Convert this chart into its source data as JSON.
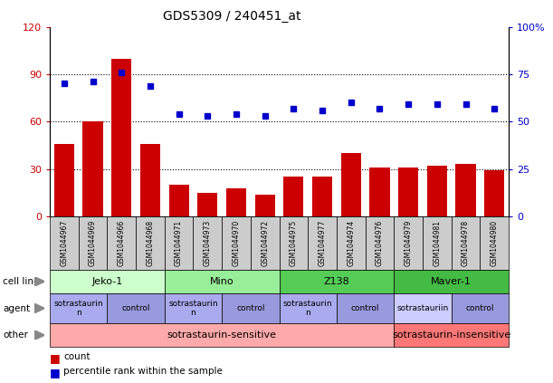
{
  "title": "GDS5309 / 240451_at",
  "samples": [
    "GSM1044967",
    "GSM1044969",
    "GSM1044966",
    "GSM1044968",
    "GSM1044971",
    "GSM1044973",
    "GSM1044970",
    "GSM1044972",
    "GSM1044975",
    "GSM1044977",
    "GSM1044974",
    "GSM1044976",
    "GSM1044979",
    "GSM1044981",
    "GSM1044978",
    "GSM1044980"
  ],
  "counts": [
    46,
    60,
    100,
    46,
    20,
    15,
    18,
    14,
    25,
    25,
    40,
    31,
    31,
    32,
    33,
    29
  ],
  "percentiles": [
    70,
    71,
    76,
    69,
    54,
    53,
    54,
    53,
    57,
    56,
    60,
    57,
    59,
    59,
    59,
    57
  ],
  "bar_color": "#cc0000",
  "dot_color": "#0000cc",
  "ylim_left": [
    0,
    120
  ],
  "ylim_right": [
    0,
    100
  ],
  "yticks_left": [
    0,
    30,
    60,
    90,
    120
  ],
  "ytick_labels_left": [
    "0",
    "30",
    "60",
    "90",
    "120"
  ],
  "yticks_right": [
    0,
    25,
    50,
    75,
    100
  ],
  "ytick_labels_right": [
    "0",
    "25",
    "50",
    "75",
    "100%"
  ],
  "cell_line_groups": [
    {
      "label": "Jeko-1",
      "start": 0,
      "end": 3,
      "color": "#ccffcc"
    },
    {
      "label": "Mino",
      "start": 4,
      "end": 7,
      "color": "#99ee99"
    },
    {
      "label": "Z138",
      "start": 8,
      "end": 11,
      "color": "#55cc55"
    },
    {
      "label": "Maver-1",
      "start": 12,
      "end": 15,
      "color": "#44bb44"
    }
  ],
  "agent_groups": [
    {
      "label": "sotrastaurin\nn",
      "start": 0,
      "end": 1,
      "color": "#aaaaee"
    },
    {
      "label": "control",
      "start": 2,
      "end": 3,
      "color": "#9999dd"
    },
    {
      "label": "sotrastaurin\nn",
      "start": 4,
      "end": 5,
      "color": "#aaaaee"
    },
    {
      "label": "control",
      "start": 6,
      "end": 7,
      "color": "#9999dd"
    },
    {
      "label": "sotrastaurin\nn",
      "start": 8,
      "end": 9,
      "color": "#aaaaee"
    },
    {
      "label": "control",
      "start": 10,
      "end": 11,
      "color": "#9999dd"
    },
    {
      "label": "sotrastauriin",
      "start": 12,
      "end": 13,
      "color": "#ccccff"
    },
    {
      "label": "control",
      "start": 14,
      "end": 15,
      "color": "#9999dd"
    }
  ],
  "other_groups": [
    {
      "label": "sotrastaurin-sensitive",
      "start": 0,
      "end": 11,
      "color": "#ffaaaa"
    },
    {
      "label": "sotrastaurin-insensitive",
      "start": 12,
      "end": 15,
      "color": "#ff7777"
    }
  ],
  "legend_items": [
    {
      "color": "#cc0000",
      "label": "count"
    },
    {
      "color": "#0000cc",
      "label": "percentile rank within the sample"
    }
  ],
  "bg_color": "#ffffff",
  "plot_bg": "#ffffff",
  "xtick_bg": "#cccccc",
  "arrow_color": "#888888"
}
